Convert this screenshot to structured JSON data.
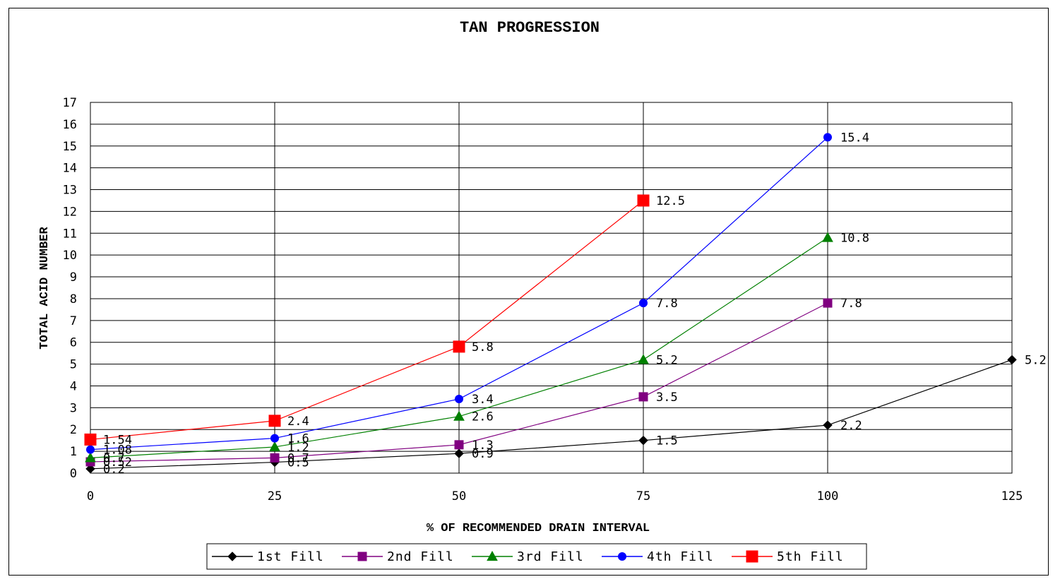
{
  "chart_data": {
    "type": "line",
    "title": "TAN PROGRESSION",
    "xlabel": "% OF RECOMMENDED DRAIN INTERVAL",
    "ylabel": "TOTAL ACID NUMBER",
    "x_ticks": [
      "0",
      "25",
      "50",
      "75",
      "100",
      "125"
    ],
    "y_ticks": [
      "0",
      "1",
      "2",
      "3",
      "4",
      "5",
      "6",
      "7",
      "8",
      "9",
      "10",
      "11",
      "12",
      "13",
      "14",
      "15",
      "16",
      "17"
    ],
    "xlim": [
      0,
      125
    ],
    "ylim": [
      0,
      17
    ],
    "grid": true,
    "legend_position": "bottom",
    "series": [
      {
        "name": "1st Fill",
        "color": "#000000",
        "marker": "diamond",
        "x": [
          0,
          25,
          50,
          75,
          100,
          125
        ],
        "y": [
          0.2,
          0.5,
          0.9,
          1.5,
          2.2,
          5.2
        ],
        "labels": [
          "0.2",
          "0.5",
          "0.9",
          "1.5",
          "2.2",
          "5.2"
        ]
      },
      {
        "name": "2nd Fill",
        "color": "#800080",
        "marker": "square",
        "x": [
          0,
          25,
          50,
          75,
          100
        ],
        "y": [
          0.52,
          0.7,
          1.3,
          3.5,
          7.8
        ],
        "labels": [
          "0.52",
          "0.7",
          "1.3",
          "3.5",
          "7.8"
        ]
      },
      {
        "name": "3rd Fill",
        "color": "#008000",
        "marker": "triangle",
        "x": [
          0,
          25,
          50,
          75,
          100
        ],
        "y": [
          0.7,
          1.2,
          2.6,
          5.2,
          10.8
        ],
        "labels": [
          "0.7",
          "1.2",
          "2.6",
          "5.2",
          "10.8"
        ]
      },
      {
        "name": "4th Fill",
        "color": "#0000FF",
        "marker": "circle",
        "x": [
          0,
          25,
          50,
          75,
          100
        ],
        "y": [
          1.08,
          1.6,
          3.4,
          7.8,
          15.4
        ],
        "labels": [
          "1.08",
          "1.6",
          "3.4",
          "7.8",
          "15.4"
        ]
      },
      {
        "name": "5th Fill",
        "color": "#FF0000",
        "marker": "bigsquare",
        "x": [
          0,
          25,
          50,
          75
        ],
        "y": [
          1.54,
          2.4,
          5.8,
          12.5
        ],
        "labels": [
          "1.54",
          "2.4",
          "5.8",
          "12.5"
        ]
      }
    ]
  }
}
